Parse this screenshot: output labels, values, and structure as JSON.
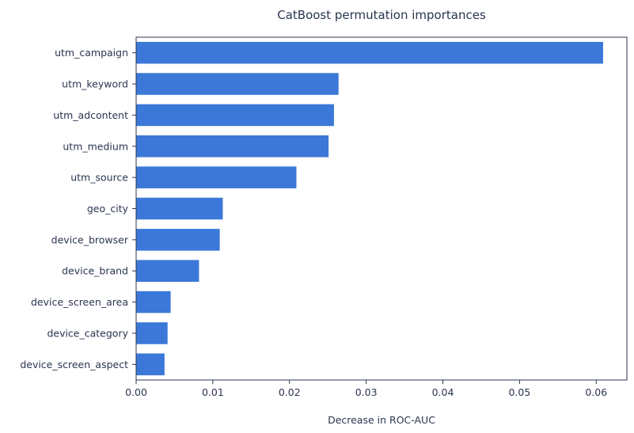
{
  "chart_data": {
    "type": "bar",
    "orientation": "horizontal",
    "title": "CatBoost permutation importances",
    "xlabel": "Decrease in ROC-AUC",
    "ylabel": "",
    "categories": [
      "utm_campaign",
      "utm_keyword",
      "utm_adcontent",
      "utm_medium",
      "utm_source",
      "geo_city",
      "device_browser",
      "device_brand",
      "device_screen_area",
      "device_category",
      "device_screen_aspect"
    ],
    "values": [
      0.0609,
      0.0264,
      0.0258,
      0.0251,
      0.0209,
      0.0113,
      0.0109,
      0.0082,
      0.0045,
      0.0041,
      0.0037
    ],
    "xlim": [
      0,
      0.064
    ],
    "xticks": [
      "0.00",
      "0.01",
      "0.02",
      "0.03",
      "0.04",
      "0.05",
      "0.06"
    ],
    "bar_color": "#3b78d8",
    "grid": false
  }
}
